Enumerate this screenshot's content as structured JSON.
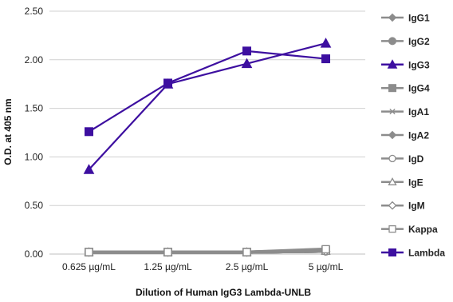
{
  "chart_data": {
    "type": "line",
    "title": "",
    "xlabel": "Dilution of Human IgG3 Lambda-UNLB",
    "ylabel": "O.D. at 405 nm",
    "categories": [
      "0.625 µg/mL",
      "1.25 µg/mL",
      "2.5 µg/mL",
      "5 µg/mL"
    ],
    "y_ticks": [
      "0.00",
      "0.50",
      "1.00",
      "1.50",
      "2.00",
      "2.50"
    ],
    "ylim": [
      0,
      2.5
    ],
    "grid": "horizontal",
    "legend_position": "right",
    "series": [
      {
        "name": "IgG1",
        "values": [
          0.02,
          0.02,
          0.02,
          0.03
        ],
        "color": "#8c8c8c",
        "marker": "diamond"
      },
      {
        "name": "IgG2",
        "values": [
          0.02,
          0.02,
          0.02,
          0.03
        ],
        "color": "#8c8c8c",
        "marker": "circle"
      },
      {
        "name": "IgG3",
        "values": [
          0.87,
          1.75,
          1.96,
          2.17
        ],
        "color": "#3d0fa0",
        "marker": "triangle"
      },
      {
        "name": "IgG4",
        "values": [
          0.02,
          0.02,
          0.02,
          0.04
        ],
        "color": "#8c8c8c",
        "marker": "square"
      },
      {
        "name": "IgA1",
        "values": [
          0.02,
          0.02,
          0.02,
          0.03
        ],
        "color": "#8c8c8c",
        "marker": "star"
      },
      {
        "name": "IgA2",
        "values": [
          0.02,
          0.02,
          0.02,
          0.03
        ],
        "color": "#8c8c8c",
        "marker": "diamond"
      },
      {
        "name": "IgD",
        "values": [
          0.02,
          0.02,
          0.02,
          0.03
        ],
        "color": "#8c8c8c",
        "marker": "open-circle"
      },
      {
        "name": "IgE",
        "values": [
          0.02,
          0.02,
          0.02,
          0.03
        ],
        "color": "#8c8c8c",
        "marker": "open-triangle"
      },
      {
        "name": "IgM",
        "values": [
          0.02,
          0.02,
          0.02,
          0.03
        ],
        "color": "#8c8c8c",
        "marker": "open-diamond"
      },
      {
        "name": "Kappa",
        "values": [
          0.02,
          0.02,
          0.02,
          0.05
        ],
        "color": "#8c8c8c",
        "marker": "open-square"
      },
      {
        "name": "Lambda",
        "values": [
          1.26,
          1.76,
          2.09,
          2.01
        ],
        "color": "#3d0fa0",
        "marker": "square"
      }
    ]
  }
}
